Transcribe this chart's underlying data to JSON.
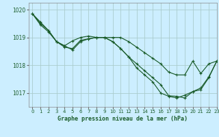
{
  "title": "Graphe pression niveau de la mer (hPa)",
  "bg_color": "#cceeff",
  "grid_color": "#aacccc",
  "line_color": "#1a5c2a",
  "marker_color": "#1a5c2a",
  "xlim": [
    -0.5,
    23
  ],
  "ylim": [
    1016.5,
    1020.25
  ],
  "yticks": [
    1017,
    1018,
    1019,
    1020
  ],
  "xticks": [
    0,
    1,
    2,
    3,
    4,
    5,
    6,
    7,
    8,
    9,
    10,
    11,
    12,
    13,
    14,
    15,
    16,
    17,
    18,
    19,
    20,
    21,
    22,
    23
  ],
  "series": [
    [
      1019.85,
      1019.55,
      1019.25,
      1018.85,
      1018.65,
      1018.6,
      1018.9,
      1018.95,
      1019.0,
      1019.0,
      1019.0,
      1019.0,
      1018.85,
      1018.65,
      1018.45,
      1018.25,
      1018.05,
      1017.75,
      1017.65,
      1017.65,
      1018.15,
      1017.7,
      1018.05,
      1018.15
    ],
    [
      1019.85,
      1019.45,
      1019.2,
      1018.85,
      1018.7,
      1018.55,
      1018.85,
      1018.95,
      1019.0,
      1019.0,
      1018.85,
      1018.6,
      1018.3,
      1018.05,
      1017.8,
      1017.55,
      1017.3,
      1016.9,
      1016.88,
      1016.82,
      1017.05,
      1017.12,
      1017.55,
      1018.15
    ],
    [
      1019.85,
      1019.5,
      1019.25,
      1018.85,
      1018.7,
      1018.88,
      1019.0,
      1019.05,
      1019.0,
      1019.0,
      1018.85,
      1018.6,
      1018.3,
      1017.9,
      1017.65,
      1017.4,
      1017.0,
      1016.88,
      1016.82,
      1016.92,
      1017.05,
      1017.18,
      1017.58,
      1018.15
    ]
  ]
}
